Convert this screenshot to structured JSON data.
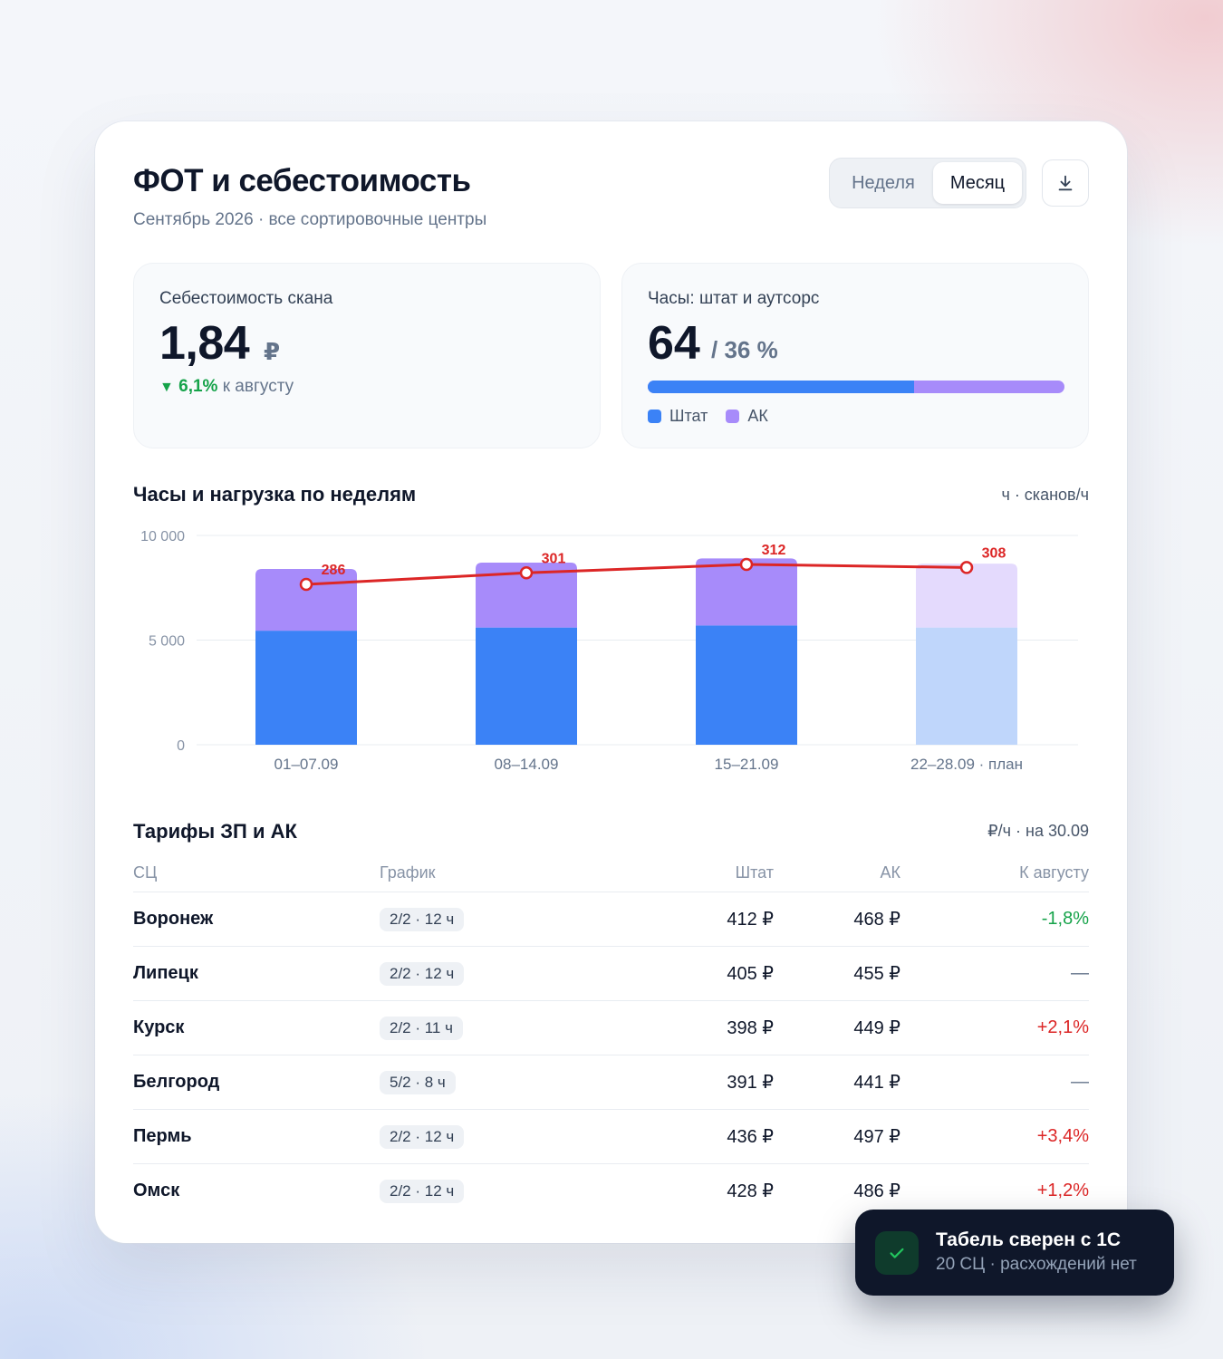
{
  "header": {
    "title": "ФОТ и себестоимость",
    "subtitle": "Сентябрь 2026 · все сортировочные центры",
    "period_options": [
      "Неделя",
      "Месяц"
    ],
    "period_selected": "Месяц",
    "download_icon": "download-icon"
  },
  "kpi_cost": {
    "label": "Себестоимость скана",
    "value": "1,84",
    "unit": "₽",
    "delta_icon": "triangle-down-icon",
    "delta": "6,1%",
    "delta_text": "к августу"
  },
  "kpi_hours": {
    "label": "Часы: штат и аутсорс",
    "value": "64",
    "unit": "/ 36 %",
    "staff_share": 0.64,
    "legend": [
      {
        "name": "Штат",
        "color": "#3b82f6"
      },
      {
        "name": "АК",
        "color": "#a78bfa"
      }
    ]
  },
  "weekly": {
    "title": "Часы и нагрузка по неделям",
    "unit": "ч · сканов/ч"
  },
  "chart_data": {
    "type": "bar",
    "stacked": true,
    "categories": [
      "01–07.09",
      "08–14.09",
      "15–21.09",
      "22–28.09 · план"
    ],
    "series": [
      {
        "name": "Штат",
        "values": [
          5450,
          5600,
          5700,
          5600
        ],
        "color": "#3b82f6"
      },
      {
        "name": "АК",
        "values": [
          2950,
          3100,
          3200,
          3050
        ],
        "color": "#a78bfa"
      }
    ],
    "line": {
      "values": [
        286,
        301,
        312,
        308
      ],
      "color": "#dc2626"
    },
    "planned_category_index": 3,
    "y_ticks": [
      "10 000",
      "5 000",
      "0"
    ],
    "ylim": [
      0,
      10000
    ],
    "grid": true
  },
  "tariffs": {
    "title": "Тарифы ЗП и АК",
    "unit": "₽/ч · на 30.09",
    "columns": [
      "СЦ",
      "График",
      "Штат",
      "АК",
      "К августу"
    ],
    "rows": [
      {
        "city": "Воронеж",
        "schedule": "2/2 · 12 ч",
        "staff": "412 ₽",
        "ak": "468 ₽",
        "change": "-1,8%",
        "trend": "neg"
      },
      {
        "city": "Липецк",
        "schedule": "2/2 · 12 ч",
        "staff": "405 ₽",
        "ak": "455 ₽",
        "change": "—",
        "trend": "neu"
      },
      {
        "city": "Курск",
        "schedule": "2/2 · 11 ч",
        "staff": "398 ₽",
        "ak": "449 ₽",
        "change": "+2,1%",
        "trend": "pos"
      },
      {
        "city": "Белгород",
        "schedule": "5/2 · 8 ч",
        "staff": "391 ₽",
        "ak": "441 ₽",
        "change": "—",
        "trend": "neu"
      },
      {
        "city": "Пермь",
        "schedule": "2/2 · 12 ч",
        "staff": "436 ₽",
        "ak": "497 ₽",
        "change": "+3,4%",
        "trend": "pos"
      },
      {
        "city": "Омск",
        "schedule": "2/2 · 12 ч",
        "staff": "428 ₽",
        "ak": "486 ₽",
        "change": "+1,2%",
        "trend": "pos"
      }
    ]
  },
  "toast": {
    "icon": "check-icon",
    "title": "Табель сверен с 1С",
    "subtitle": "20 СЦ · расхождений нет"
  }
}
